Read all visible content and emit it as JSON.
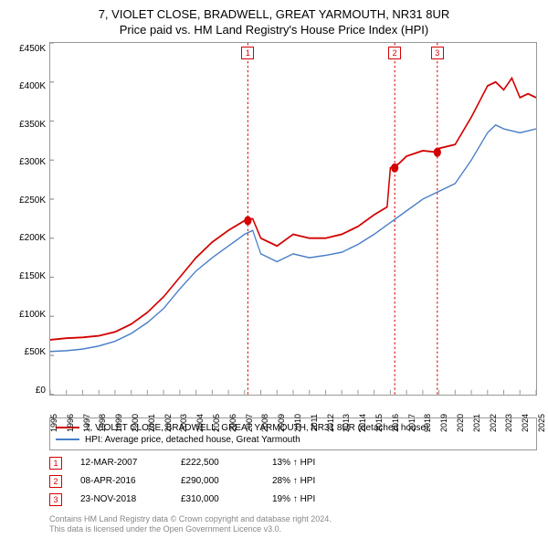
{
  "title": "7, VIOLET CLOSE, BRADWELL, GREAT YARMOUTH, NR31 8UR",
  "subtitle": "Price paid vs. HM Land Registry's House Price Index (HPI)",
  "chart": {
    "type": "line",
    "ylim": [
      0,
      450000
    ],
    "ytick_step": 50000,
    "yticks": [
      "£450K",
      "£400K",
      "£350K",
      "£300K",
      "£250K",
      "£200K",
      "£150K",
      "£100K",
      "£50K",
      "£0"
    ],
    "xlim": [
      1995,
      2025
    ],
    "xticks": [
      "1995",
      "1996",
      "1997",
      "1998",
      "1999",
      "2000",
      "2001",
      "2002",
      "2003",
      "2004",
      "2005",
      "2006",
      "2007",
      "2008",
      "2009",
      "2010",
      "2011",
      "2012",
      "2013",
      "2014",
      "2015",
      "2016",
      "2017",
      "2018",
      "2019",
      "2020",
      "2021",
      "2022",
      "2023",
      "2024",
      "2025"
    ],
    "background_color": "#ffffff",
    "axis_color": "#999999",
    "series": [
      {
        "name": "property",
        "label": "7, VIOLET CLOSE, BRADWELL, GREAT YARMOUTH, NR31 8UR (detached house)",
        "color": "#d40000",
        "line_width": 1.5,
        "points": [
          [
            1995,
            70000
          ],
          [
            1996,
            72000
          ],
          [
            1997,
            73000
          ],
          [
            1998,
            75000
          ],
          [
            1999,
            80000
          ],
          [
            2000,
            90000
          ],
          [
            2001,
            105000
          ],
          [
            2002,
            125000
          ],
          [
            2003,
            150000
          ],
          [
            2004,
            175000
          ],
          [
            2005,
            195000
          ],
          [
            2006,
            210000
          ],
          [
            2007,
            222500
          ],
          [
            2007.5,
            225000
          ],
          [
            2008,
            200000
          ],
          [
            2009,
            190000
          ],
          [
            2010,
            205000
          ],
          [
            2011,
            200000
          ],
          [
            2012,
            200000
          ],
          [
            2013,
            205000
          ],
          [
            2014,
            215000
          ],
          [
            2015,
            230000
          ],
          [
            2015.8,
            240000
          ],
          [
            2016,
            290000
          ],
          [
            2016.5,
            295000
          ],
          [
            2017,
            305000
          ],
          [
            2018,
            312000
          ],
          [
            2018.9,
            310000
          ],
          [
            2019,
            315000
          ],
          [
            2020,
            320000
          ],
          [
            2021,
            355000
          ],
          [
            2022,
            395000
          ],
          [
            2022.5,
            400000
          ],
          [
            2023,
            390000
          ],
          [
            2023.5,
            405000
          ],
          [
            2024,
            380000
          ],
          [
            2024.5,
            385000
          ],
          [
            2025,
            380000
          ]
        ]
      },
      {
        "name": "hpi",
        "label": "HPI: Average price, detached house, Great Yarmouth",
        "color": "#4a7ec8",
        "line_width": 1.2,
        "points": [
          [
            1995,
            55000
          ],
          [
            1996,
            56000
          ],
          [
            1997,
            58000
          ],
          [
            1998,
            62000
          ],
          [
            1999,
            68000
          ],
          [
            2000,
            78000
          ],
          [
            2001,
            92000
          ],
          [
            2002,
            110000
          ],
          [
            2003,
            135000
          ],
          [
            2004,
            158000
          ],
          [
            2005,
            175000
          ],
          [
            2006,
            190000
          ],
          [
            2007,
            205000
          ],
          [
            2007.5,
            210000
          ],
          [
            2008,
            180000
          ],
          [
            2009,
            170000
          ],
          [
            2010,
            180000
          ],
          [
            2011,
            175000
          ],
          [
            2012,
            178000
          ],
          [
            2013,
            182000
          ],
          [
            2014,
            192000
          ],
          [
            2015,
            205000
          ],
          [
            2016,
            220000
          ],
          [
            2017,
            235000
          ],
          [
            2018,
            250000
          ],
          [
            2019,
            260000
          ],
          [
            2020,
            270000
          ],
          [
            2021,
            300000
          ],
          [
            2022,
            335000
          ],
          [
            2022.5,
            345000
          ],
          [
            2023,
            340000
          ],
          [
            2024,
            335000
          ],
          [
            2025,
            340000
          ]
        ]
      }
    ],
    "markers": [
      {
        "n": "1",
        "x": 2007.2,
        "y": 222500,
        "date": "12-MAR-2007",
        "price": "£222,500",
        "pct": "13% ↑ HPI"
      },
      {
        "n": "2",
        "x": 2016.27,
        "y": 290000,
        "date": "08-APR-2016",
        "price": "£290,000",
        "pct": "28% ↑ HPI"
      },
      {
        "n": "3",
        "x": 2018.9,
        "y": 310000,
        "date": "23-NOV-2018",
        "price": "£310,000",
        "pct": "19% ↑ HPI"
      }
    ],
    "marker_line_color": "#d40000",
    "marker_dot_color": "#d40000",
    "marker_badge_border": "#d40000",
    "marker_badge_text": "#d40000",
    "marker_badge_bg": "#ffffff"
  },
  "legend": {
    "border_color": "#999999"
  },
  "footer": {
    "line1": "Contains HM Land Registry data © Crown copyright and database right 2024.",
    "line2": "This data is licensed under the Open Government Licence v3.0."
  }
}
